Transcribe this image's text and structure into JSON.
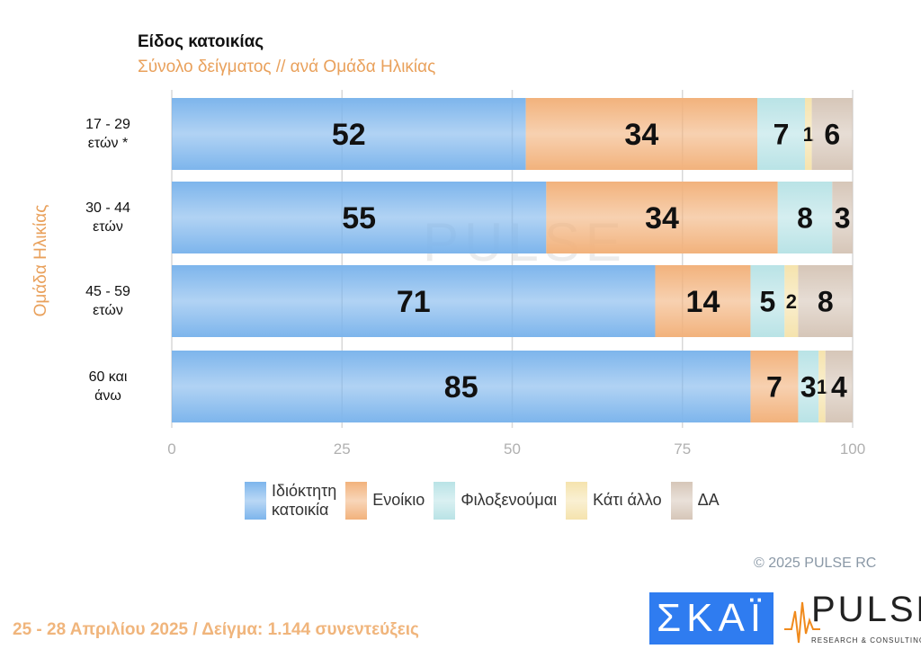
{
  "chart_data": {
    "type": "bar",
    "orientation": "horizontal",
    "stacked": true,
    "title": "Είδος κατοικίας",
    "subtitle": "Σύνολο δείγματος // ανά Ομάδα Ηλικίας",
    "ylabel": "Ομάδα Ηλικίας",
    "xlabel": "",
    "categories": [
      "17 - 29\nετών *",
      "30 - 44\nετών",
      "45 - 59\nετών",
      "60 και\nάνω"
    ],
    "series": [
      {
        "name": "Ιδιόκτητη\nκατοικία",
        "color": "#7db5ec",
        "values": [
          52,
          55,
          71,
          85
        ]
      },
      {
        "name": "Ενοίκιο",
        "color": "#f2b27c",
        "values": [
          34,
          34,
          14,
          7
        ]
      },
      {
        "name": "Φιλοξενούμαι",
        "color": "#b9e3e6",
        "values": [
          7,
          8,
          5,
          3
        ]
      },
      {
        "name": "Κάτι άλλο",
        "color": "#f5e3ad",
        "values": [
          1,
          0,
          2,
          1
        ]
      },
      {
        "name": "ΔΑ",
        "color": "#d6c6b8",
        "values": [
          6,
          3,
          8,
          4
        ]
      }
    ],
    "xlim": [
      0,
      100
    ],
    "xticks": [
      "0",
      "25",
      "50",
      "75",
      "100"
    ],
    "grid": true,
    "legend": "bottom"
  },
  "copyright": "©  2025  PULSE RC",
  "footer": "25 - 28 Απριλίου 2025  /  Δείγμα:  1.144 συνεντεύξεις",
  "logos": {
    "skai": "ΣΚΑΪ",
    "pulse": "PULSE",
    "pulse_sub": "RESEARCH & CONSULTING"
  },
  "watermark": "PULSE"
}
